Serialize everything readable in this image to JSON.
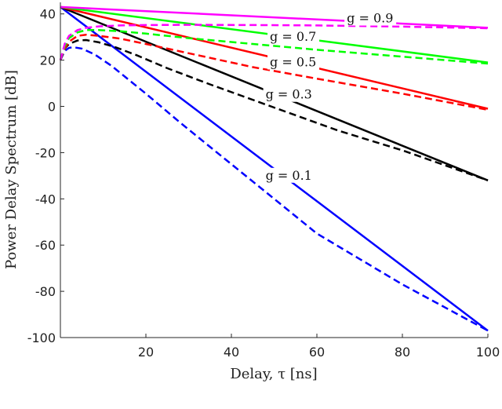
{
  "chart_data": {
    "type": "line",
    "xlabel": "Delay, τ [ns]",
    "ylabel": "Power Delay Spectrum [dB]",
    "xlim": [
      0,
      100
    ],
    "ylim": [
      -100,
      45
    ],
    "xticks": [
      20,
      40,
      60,
      80,
      100
    ],
    "yticks": [
      -100,
      -80,
      -60,
      -40,
      -20,
      0,
      20,
      40
    ],
    "grid": false,
    "series": [
      {
        "color": "#0000ff",
        "style": "solid",
        "x": [
          0,
          100
        ],
        "y": [
          43,
          -97
        ]
      },
      {
        "color": "#0000ff",
        "style": "dashed",
        "x": [
          0,
          1,
          2,
          3,
          5,
          8,
          12,
          16,
          20,
          28,
          36,
          44,
          52,
          60,
          70,
          80,
          90,
          100
        ],
        "y": [
          20,
          24,
          25.3,
          25.6,
          25,
          22.5,
          17.5,
          11.5,
          5.5,
          -7,
          -19,
          -31,
          -43,
          -55,
          -66,
          -77,
          -87,
          -97
        ]
      },
      {
        "color": "#000000",
        "style": "solid",
        "x": [
          0,
          100
        ],
        "y": [
          43,
          -32
        ]
      },
      {
        "color": "#000000",
        "style": "dashed",
        "x": [
          0,
          1,
          2,
          4,
          6,
          9,
          13,
          18,
          25,
          35,
          50,
          65,
          80,
          100
        ],
        "y": [
          20,
          25,
          27,
          28.5,
          28.7,
          27.7,
          25.5,
          22,
          16.5,
          9.5,
          -0.5,
          -10.5,
          -19,
          -32
        ]
      },
      {
        "color": "#ff0000",
        "style": "solid",
        "x": [
          0,
          100
        ],
        "y": [
          43,
          -1
        ]
      },
      {
        "color": "#ff0000",
        "style": "dashed",
        "x": [
          0,
          1,
          2,
          4,
          6,
          9,
          14,
          20,
          30,
          45,
          60,
          80,
          100
        ],
        "y": [
          20,
          25,
          28,
          30.5,
          31,
          30.5,
          29.3,
          27,
          23,
          17,
          12,
          5.5,
          -1.5
        ]
      },
      {
        "color": "#00ff00",
        "style": "solid",
        "x": [
          0,
          100
        ],
        "y": [
          43,
          19
        ]
      },
      {
        "color": "#00ff00",
        "style": "dashed",
        "x": [
          0,
          1,
          2,
          4,
          6,
          9,
          14,
          20,
          30,
          45,
          60,
          80,
          100
        ],
        "y": [
          20,
          26,
          29.5,
          32,
          33,
          33,
          32.5,
          31.5,
          29.5,
          27,
          24.5,
          21.5,
          18.5
        ]
      },
      {
        "color": "#ff00ff",
        "style": "solid",
        "x": [
          0,
          100
        ],
        "y": [
          43,
          34
        ]
      },
      {
        "color": "#ff00ff",
        "style": "dashed",
        "x": [
          0,
          1,
          2,
          4,
          6,
          9,
          14,
          20,
          30,
          45,
          60,
          80,
          100
        ],
        "y": [
          20,
          27,
          30.5,
          33,
          34,
          34.6,
          35,
          35.2,
          35.3,
          35.2,
          35,
          34.5,
          33.8
        ]
      }
    ],
    "annotations": [
      {
        "text": "g = 0.9",
        "x": 67,
        "y": 37
      },
      {
        "text": "g = 0.7",
        "x": 49,
        "y": 29
      },
      {
        "text": "g = 0.5",
        "x": 49,
        "y": 18
      },
      {
        "text": "g = 0.3",
        "x": 48,
        "y": 4
      },
      {
        "text": "g = 0.1",
        "x": 48,
        "y": -31
      }
    ]
  }
}
